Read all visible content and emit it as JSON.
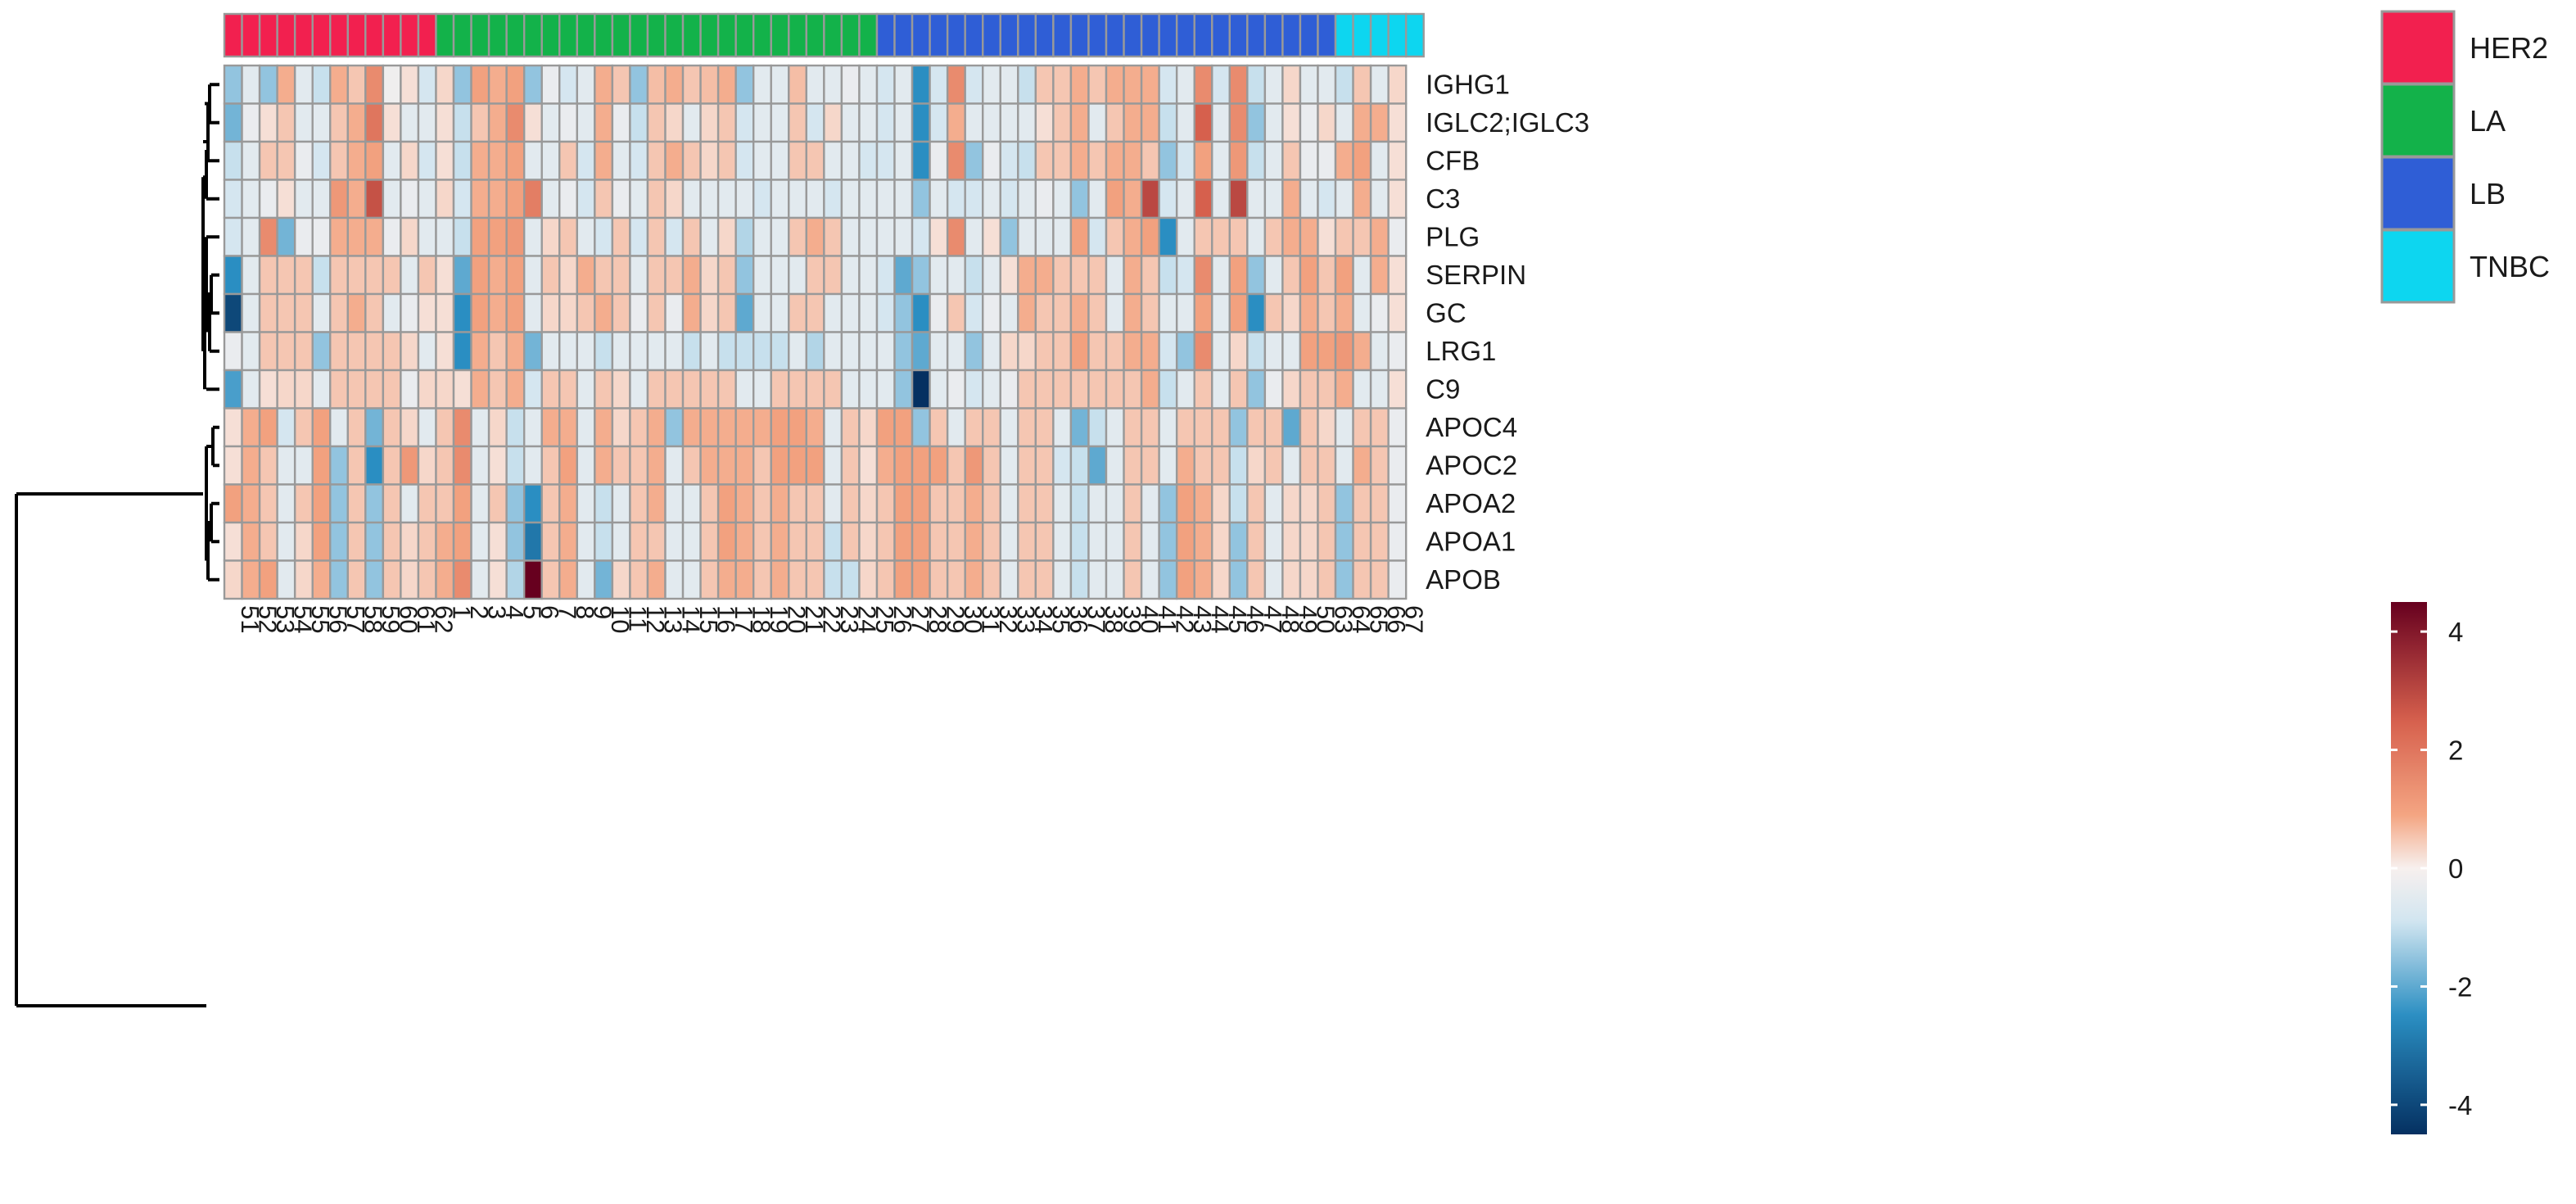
{
  "chart_data": {
    "type": "heatmap",
    "title": "",
    "rows": [
      "IGHG1",
      "IGLC2;IGLC3",
      "CFB",
      "C3",
      "PLG",
      "SERPIN",
      "GC",
      "LRG1",
      "C9",
      "APOC4",
      "APOC2",
      "APOA2",
      "APOA1",
      "APOB"
    ],
    "columns": [
      "51",
      "52",
      "53",
      "54",
      "55",
      "56",
      "57",
      "58",
      "59",
      "60",
      "61",
      "62",
      "1",
      "2",
      "3",
      "4",
      "5",
      "6",
      "7",
      "8",
      "9",
      "10",
      "11",
      "12",
      "13",
      "14",
      "15",
      "16",
      "17",
      "18",
      "19",
      "20",
      "21",
      "22",
      "23",
      "24",
      "25",
      "26",
      "27",
      "28",
      "29",
      "30",
      "31",
      "32",
      "33",
      "34",
      "35",
      "36",
      "37",
      "38",
      "39",
      "40",
      "41",
      "42",
      "43",
      "44",
      "45",
      "46",
      "47",
      "48",
      "49",
      "50",
      "63",
      "64",
      "65",
      "66",
      "67"
    ],
    "column_groups": [
      "HER2",
      "HER2",
      "HER2",
      "HER2",
      "HER2",
      "HER2",
      "HER2",
      "HER2",
      "HER2",
      "HER2",
      "HER2",
      "HER2",
      "LA",
      "LA",
      "LA",
      "LA",
      "LA",
      "LA",
      "LA",
      "LA",
      "LA",
      "LA",
      "LA",
      "LA",
      "LA",
      "LA",
      "LA",
      "LA",
      "LA",
      "LA",
      "LA",
      "LA",
      "LA",
      "LA",
      "LA",
      "LA",
      "LA",
      "LB",
      "LB",
      "LB",
      "LB",
      "LB",
      "LB",
      "LB",
      "LB",
      "LB",
      "LB",
      "LB",
      "LB",
      "LB",
      "LB",
      "LB",
      "LB",
      "LB",
      "LB",
      "LB",
      "LB",
      "LB",
      "LB",
      "LB",
      "LB",
      "LB",
      "LB",
      "TNBC",
      "TNBC",
      "TNBC",
      "TNBC",
      "TNBC"
    ],
    "values": [
      [
        -1.5,
        -0.5,
        -1.5,
        0.8,
        -0.5,
        -1.0,
        0.8,
        0.5,
        1.5,
        -0.2,
        0.2,
        -0.8,
        0.3,
        -1.5,
        1.0,
        0.8,
        1.0,
        -1.5,
        -0.3,
        -0.8,
        -0.5,
        0.8,
        0.5,
        -1.5,
        0.6,
        0.8,
        0.5,
        0.6,
        0.8,
        -1.5,
        -0.5,
        -0.5,
        0.6,
        -0.5,
        -0.5,
        -0.3,
        -0.5,
        -0.8,
        -0.5,
        -2.5,
        -0.8,
        1.5,
        -0.8,
        -0.5,
        -0.5,
        -1.0,
        0.5,
        0.5,
        0.8,
        0.5,
        0.8,
        0.8,
        0.8,
        -0.8,
        -0.5,
        1.5,
        -0.8,
        1.5,
        -1.0,
        -0.5,
        0.3,
        -0.5,
        -0.5,
        -1.0,
        0.5,
        -0.5,
        0.3
      ],
      [
        -1.8,
        -0.3,
        0.2,
        0.5,
        -0.5,
        -0.5,
        0.5,
        0.8,
        2.0,
        0.2,
        -0.5,
        -0.5,
        0.2,
        -1.0,
        0.5,
        0.8,
        1.5,
        0.2,
        -0.5,
        -0.3,
        -0.5,
        0.8,
        -0.3,
        -1.0,
        0.5,
        0.3,
        -0.5,
        0.3,
        0.5,
        -0.8,
        -0.5,
        -0.5,
        0.5,
        -0.8,
        0.3,
        -0.5,
        -0.5,
        -0.8,
        -0.5,
        -2.5,
        -0.8,
        0.8,
        -0.5,
        -0.5,
        -0.5,
        -0.5,
        0.2,
        0.5,
        0.8,
        -0.5,
        0.5,
        0.8,
        0.8,
        -1.0,
        -0.5,
        2.5,
        -0.5,
        1.5,
        -1.5,
        -0.5,
        0.2,
        -0.3,
        0.3,
        -0.5,
        0.8,
        0.8,
        0.2
      ],
      [
        -1.0,
        -0.5,
        0.5,
        0.5,
        -0.3,
        -0.8,
        0.5,
        0.8,
        1.0,
        -0.5,
        0.3,
        -0.8,
        0.2,
        -1.0,
        0.8,
        0.8,
        1.0,
        -0.5,
        -0.5,
        0.5,
        -0.8,
        0.8,
        -0.5,
        -0.8,
        0.5,
        0.8,
        0.5,
        0.3,
        0.5,
        -0.8,
        -0.5,
        -0.5,
        0.5,
        0.5,
        -0.5,
        -0.5,
        -0.8,
        -0.8,
        -0.5,
        -2.5,
        -0.3,
        1.5,
        -1.5,
        -0.3,
        -0.8,
        -1.0,
        0.5,
        0.5,
        0.8,
        0.5,
        0.8,
        0.8,
        0.5,
        -1.5,
        -0.8,
        1.0,
        -0.5,
        1.2,
        -1.0,
        -0.5,
        0.5,
        -0.3,
        -0.3,
        0.8,
        1.0,
        -0.5,
        0.2
      ],
      [
        -0.8,
        -0.5,
        -0.3,
        0.2,
        -0.5,
        -0.5,
        1.2,
        0.8,
        2.8,
        -0.5,
        -0.3,
        -0.5,
        0.3,
        -0.8,
        0.8,
        0.8,
        1.0,
        1.8,
        -0.5,
        -0.3,
        -0.8,
        0.5,
        -0.3,
        -0.5,
        0.5,
        0.3,
        -0.5,
        -0.5,
        -0.5,
        -0.5,
        -0.8,
        -0.5,
        -0.5,
        -0.5,
        -0.8,
        -0.5,
        -0.5,
        -0.5,
        -0.5,
        -1.5,
        -0.5,
        -0.8,
        -0.8,
        -0.5,
        -0.8,
        -0.5,
        -0.3,
        -0.5,
        -1.5,
        -0.5,
        1.0,
        0.8,
        3.0,
        -0.8,
        -0.5,
        2.5,
        -0.5,
        3.0,
        -0.5,
        -0.5,
        0.8,
        -0.5,
        -0.8,
        -0.5,
        0.8,
        -0.5,
        0.2
      ],
      [
        -0.8,
        -0.5,
        1.5,
        -1.8,
        -0.3,
        -0.3,
        0.8,
        0.8,
        0.8,
        -0.3,
        0.3,
        -0.5,
        -0.5,
        -1.0,
        1.0,
        1.0,
        1.2,
        -0.5,
        0.3,
        0.5,
        -0.5,
        -0.8,
        0.5,
        -0.8,
        0.5,
        -0.8,
        0.5,
        -0.5,
        0.3,
        -1.2,
        -0.5,
        -0.5,
        0.5,
        0.8,
        0.5,
        -0.5,
        -0.5,
        -0.5,
        -0.5,
        -0.8,
        0.2,
        1.5,
        -0.5,
        0.2,
        -1.5,
        -0.5,
        -0.5,
        -0.5,
        1.0,
        -0.8,
        0.5,
        0.8,
        1.0,
        -2.5,
        -0.5,
        0.5,
        0.5,
        0.5,
        -0.5,
        0.5,
        0.8,
        0.8,
        0.2,
        0.5,
        0.5,
        0.8,
        -0.3
      ],
      [
        -2.5,
        -0.5,
        0.5,
        0.5,
        0.5,
        -1.0,
        0.5,
        0.5,
        0.5,
        0.5,
        -0.5,
        0.5,
        0.2,
        -2.0,
        1.0,
        0.8,
        1.0,
        -0.5,
        0.5,
        0.3,
        0.8,
        0.5,
        0.5,
        -0.5,
        0.5,
        0.5,
        0.8,
        0.3,
        0.5,
        -1.5,
        -0.5,
        -0.5,
        -0.5,
        0.5,
        0.5,
        -0.5,
        -0.5,
        -0.8,
        -2.0,
        -1.5,
        -0.5,
        -0.5,
        -1.0,
        -0.5,
        0.2,
        0.8,
        0.8,
        0.5,
        0.5,
        0.5,
        -0.5,
        0.8,
        0.5,
        -1.0,
        -0.8,
        1.5,
        -0.5,
        1.0,
        -1.5,
        -0.5,
        0.5,
        1.0,
        0.5,
        1.0,
        -0.5,
        0.8,
        0.2
      ],
      [
        -4.0,
        -0.5,
        0.5,
        0.5,
        0.5,
        -0.5,
        0.5,
        0.8,
        0.5,
        -0.5,
        -0.3,
        0.2,
        0.2,
        -2.5,
        1.0,
        0.8,
        1.0,
        -0.5,
        0.3,
        0.3,
        0.5,
        0.8,
        0.5,
        -0.3,
        0.5,
        -0.3,
        0.8,
        0.3,
        0.5,
        -2.0,
        -0.5,
        -0.5,
        0.5,
        0.5,
        -0.5,
        -0.5,
        -0.5,
        -0.8,
        -1.5,
        -2.5,
        -0.3,
        0.5,
        -0.8,
        -0.3,
        -0.5,
        0.8,
        0.5,
        0.5,
        0.8,
        0.5,
        -0.5,
        0.8,
        0.5,
        -0.5,
        -0.5,
        1.0,
        -0.5,
        1.0,
        -2.5,
        0.5,
        0.3,
        0.8,
        0.5,
        0.8,
        -0.5,
        -0.3,
        0.2
      ],
      [
        -0.3,
        -0.5,
        0.5,
        0.5,
        0.5,
        -1.5,
        0.5,
        0.5,
        0.5,
        0.5,
        0.3,
        -0.5,
        0.2,
        -2.5,
        0.8,
        0.5,
        0.8,
        -1.8,
        -0.5,
        -0.5,
        -0.5,
        -1.0,
        -0.5,
        -0.5,
        -0.5,
        -0.5,
        -1.0,
        -0.5,
        -1.0,
        -1.0,
        -1.0,
        -1.0,
        -0.5,
        -1.2,
        -0.5,
        -0.5,
        -0.5,
        -0.5,
        -1.5,
        -2.0,
        -0.5,
        -0.5,
        -1.5,
        -0.5,
        0.3,
        0.3,
        0.5,
        0.5,
        1.0,
        0.5,
        0.5,
        0.8,
        0.8,
        -0.8,
        -1.5,
        1.5,
        -0.5,
        0.3,
        -1.0,
        -0.5,
        -0.5,
        1.0,
        1.0,
        1.2,
        0.8,
        -0.5,
        -0.3
      ],
      [
        -2.2,
        -0.5,
        0.2,
        0.3,
        0.3,
        -0.5,
        0.5,
        0.5,
        0.5,
        0.5,
        -0.3,
        0.3,
        0.3,
        0.2,
        0.8,
        0.5,
        0.8,
        -0.8,
        0.5,
        0.5,
        -0.5,
        0.5,
        0.3,
        -0.5,
        0.5,
        0.5,
        0.5,
        0.5,
        0.5,
        -0.5,
        -0.5,
        0.5,
        0.5,
        0.5,
        0.5,
        -0.5,
        -0.5,
        -0.5,
        -1.5,
        -4.5,
        -0.5,
        -0.3,
        -0.8,
        -0.5,
        -0.3,
        0.5,
        0.5,
        0.5,
        0.5,
        0.5,
        0.5,
        0.5,
        0.8,
        -1.0,
        -0.5,
        0.5,
        -0.5,
        0.5,
        -1.5,
        -0.3,
        0.3,
        0.5,
        0.5,
        0.8,
        -0.5,
        -0.5,
        0.2
      ],
      [
        0.2,
        0.8,
        1.0,
        -0.8,
        0.5,
        1.0,
        -0.5,
        0.5,
        -1.8,
        0.5,
        0.3,
        -0.5,
        0.5,
        1.5,
        -0.5,
        0.3,
        -1.0,
        -0.5,
        0.8,
        0.8,
        -0.5,
        0.8,
        0.3,
        0.5,
        0.8,
        -1.5,
        0.8,
        0.8,
        0.8,
        0.8,
        0.8,
        1.0,
        1.0,
        0.8,
        -0.5,
        0.5,
        0.3,
        1.0,
        1.0,
        -1.5,
        0.5,
        -0.5,
        0.5,
        0.5,
        -0.5,
        0.5,
        0.5,
        -0.5,
        -1.8,
        -1.0,
        -0.5,
        0.5,
        0.5,
        -0.5,
        0.5,
        0.5,
        0.5,
        -1.5,
        0.5,
        0.5,
        -2.0,
        0.5,
        0.3,
        -0.5,
        0.5,
        0.5,
        -0.3
      ],
      [
        0.2,
        0.8,
        0.5,
        -0.5,
        -0.5,
        1.0,
        -1.5,
        0.5,
        -2.5,
        0.5,
        1.2,
        0.3,
        0.5,
        1.5,
        -0.5,
        0.2,
        -1.0,
        -0.5,
        0.5,
        1.0,
        -0.5,
        0.8,
        0.5,
        0.5,
        0.8,
        -0.5,
        0.5,
        0.8,
        0.8,
        0.8,
        0.5,
        1.0,
        1.0,
        1.0,
        -0.5,
        0.5,
        0.2,
        0.8,
        1.0,
        1.0,
        1.0,
        0.5,
        1.2,
        0.5,
        -0.5,
        0.5,
        0.5,
        -0.8,
        -1.0,
        -2.0,
        -0.5,
        0.5,
        0.5,
        -0.5,
        0.8,
        0.5,
        0.5,
        -1.0,
        0.3,
        0.5,
        -0.5,
        0.5,
        0.5,
        -0.5,
        0.8,
        0.5,
        -0.3
      ],
      [
        1.0,
        0.8,
        0.5,
        -0.5,
        0.5,
        1.0,
        -1.5,
        0.5,
        -1.5,
        0.5,
        -0.5,
        0.5,
        0.5,
        1.0,
        -0.5,
        0.5,
        -1.5,
        -2.5,
        0.5,
        0.8,
        -0.5,
        -1.0,
        -0.5,
        0.5,
        0.8,
        -0.5,
        -0.5,
        0.5,
        1.0,
        0.8,
        0.5,
        0.8,
        0.5,
        0.5,
        -0.5,
        0.5,
        0.3,
        0.5,
        1.0,
        1.0,
        0.5,
        0.5,
        0.8,
        0.5,
        -0.5,
        0.5,
        0.5,
        -0.5,
        -1.0,
        -0.5,
        -0.5,
        0.5,
        -0.5,
        -1.5,
        1.0,
        0.8,
        0.3,
        -1.0,
        0.5,
        -0.5,
        0.3,
        0.3,
        0.5,
        -1.5,
        0.5,
        0.5,
        -0.3
      ],
      [
        0.2,
        0.8,
        0.5,
        -0.5,
        0.3,
        1.0,
        -1.5,
        0.5,
        -1.5,
        0.5,
        0.3,
        0.5,
        0.8,
        1.0,
        -0.5,
        0.2,
        -1.5,
        -3.0,
        0.5,
        0.8,
        -0.5,
        -1.0,
        -0.5,
        0.5,
        0.5,
        -0.5,
        -0.5,
        0.5,
        1.0,
        0.8,
        0.5,
        0.8,
        0.5,
        0.5,
        -1.0,
        0.5,
        0.3,
        0.5,
        1.0,
        1.0,
        0.5,
        0.5,
        0.8,
        0.5,
        -0.5,
        0.5,
        0.5,
        -0.5,
        -1.0,
        -0.5,
        -0.5,
        0.5,
        -0.5,
        -1.5,
        1.0,
        0.8,
        0.3,
        -1.5,
        0.5,
        -0.5,
        0.3,
        0.3,
        0.5,
        -1.5,
        0.5,
        0.5,
        -0.3
      ],
      [
        0.3,
        0.8,
        1.0,
        -0.5,
        0.3,
        0.8,
        -1.5,
        0.5,
        -1.5,
        0.5,
        0.3,
        0.5,
        0.8,
        1.5,
        -0.5,
        0.2,
        -1.2,
        4.5,
        0.5,
        0.8,
        -0.5,
        -1.8,
        0.3,
        0.5,
        0.8,
        -0.5,
        -0.5,
        0.5,
        0.8,
        0.8,
        0.5,
        0.8,
        0.5,
        0.5,
        -1.0,
        -1.0,
        0.3,
        0.5,
        1.0,
        1.0,
        0.5,
        0.5,
        0.8,
        0.5,
        -0.5,
        0.5,
        0.5,
        -0.5,
        -1.0,
        -0.5,
        -0.5,
        0.5,
        -0.5,
        -1.5,
        1.0,
        0.8,
        0.3,
        -1.5,
        0.5,
        -0.5,
        0.3,
        0.3,
        0.5,
        -1.5,
        0.5,
        0.5,
        -0.3
      ]
    ],
    "groups_legend": [
      {
        "name": "HER2",
        "color": "#F2204F"
      },
      {
        "name": "LA",
        "color": "#13B24A"
      },
      {
        "name": "LB",
        "color": "#2F5ED6"
      },
      {
        "name": "TNBC",
        "color": "#0DD6F0"
      }
    ],
    "colorbar": {
      "range": [
        -4.5,
        4.5
      ],
      "ticks": [
        4,
        2,
        0,
        -2,
        -4
      ],
      "tick_labels": [
        "4",
        "2",
        "0",
        "-2",
        "-4"
      ],
      "colors": [
        "#053061",
        "#2A8EC2",
        "#D1E5F0",
        "#F7F0EE",
        "#F4A582",
        "#D6604D",
        "#67001F"
      ]
    },
    "dendrogram": {
      "top_level_split": [
        [
          "IGHG1",
          "IGLC2;IGLC3",
          "CFB",
          "C3",
          "PLG",
          "SERPIN",
          "GC",
          "LRG1",
          "C9"
        ],
        [
          "APOC4",
          "APOC2",
          "APOA2",
          "APOA1",
          "APOB"
        ]
      ]
    }
  }
}
